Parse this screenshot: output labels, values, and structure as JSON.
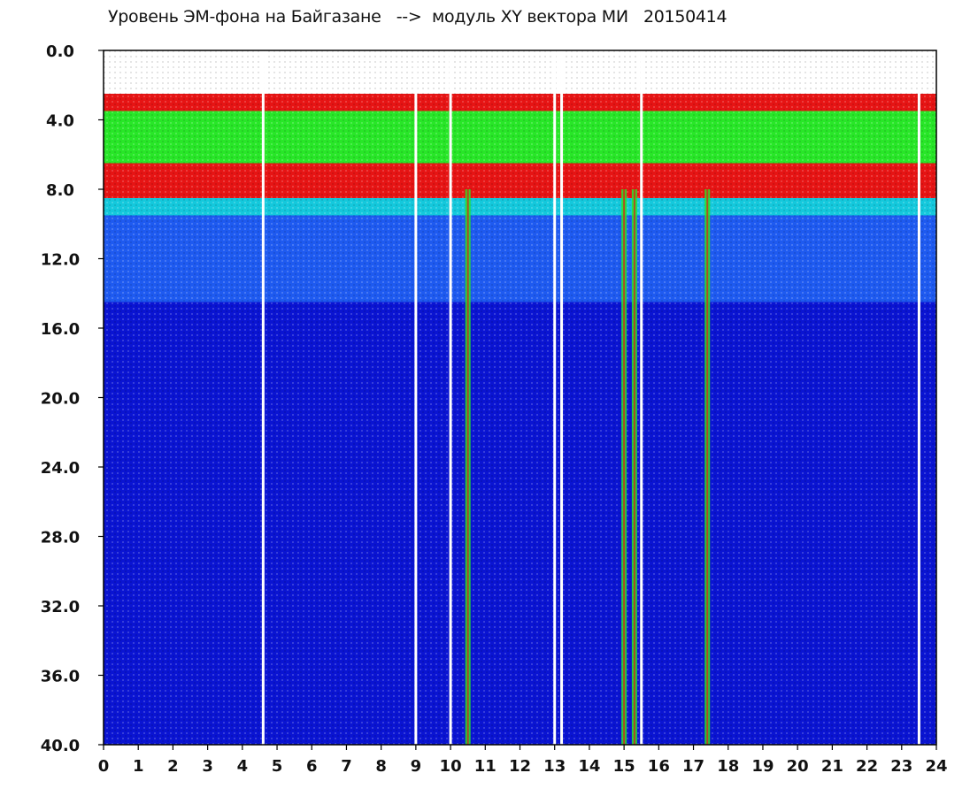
{
  "chart_data": {
    "type": "heatmap",
    "title": "Уровень ЭМ-фона на Байгазане   -->  модуль XY вектора МИ   20150414",
    "xlabel": "",
    "ylabel": "",
    "xlim": [
      0,
      24
    ],
    "ylim": [
      40.0,
      0.0
    ],
    "x_ticks": [
      "0",
      "1",
      "2",
      "3",
      "4",
      "5",
      "6",
      "7",
      "8",
      "9",
      "10",
      "11",
      "12",
      "13",
      "14",
      "15",
      "16",
      "17",
      "18",
      "19",
      "20",
      "21",
      "22",
      "23",
      "24"
    ],
    "y_ticks": [
      "0.0",
      "4.0",
      "8.0",
      "12.0",
      "16.0",
      "20.0",
      "24.0",
      "28.0",
      "32.0",
      "36.0",
      "40.0"
    ],
    "grid": false,
    "colors": {
      "low": "#0a14d2",
      "mid_low": "#1e5af0",
      "mid": "#14c8dc",
      "mid_high": "#28e628",
      "high": "#ffdc00",
      "peak": "#e61414",
      "gap": "#ffffff"
    },
    "band_profile": [
      {
        "y_from": 0.0,
        "y_to": 2.5,
        "level": "gap"
      },
      {
        "y_from": 2.5,
        "y_to": 3.5,
        "level": "peak"
      },
      {
        "y_from": 3.5,
        "y_to": 6.5,
        "level": "mid_high"
      },
      {
        "y_from": 6.5,
        "y_to": 8.5,
        "level": "peak"
      },
      {
        "y_from": 8.5,
        "y_to": 9.5,
        "level": "mid"
      },
      {
        "y_from": 9.5,
        "y_to": 14.5,
        "level": "mid_low"
      },
      {
        "y_from": 14.5,
        "y_to": 40.0,
        "level": "low"
      }
    ],
    "gaps_x": [
      4.6,
      9.0,
      10.0,
      13.0,
      13.2,
      15.5,
      23.5
    ],
    "dips": [
      {
        "x": 10.5,
        "y_to": 40.0
      },
      {
        "x": 15.0,
        "y_to": 40.0
      },
      {
        "x": 15.3,
        "y_to": 40.0
      },
      {
        "x": 17.4,
        "y_to": 40.0
      }
    ]
  }
}
